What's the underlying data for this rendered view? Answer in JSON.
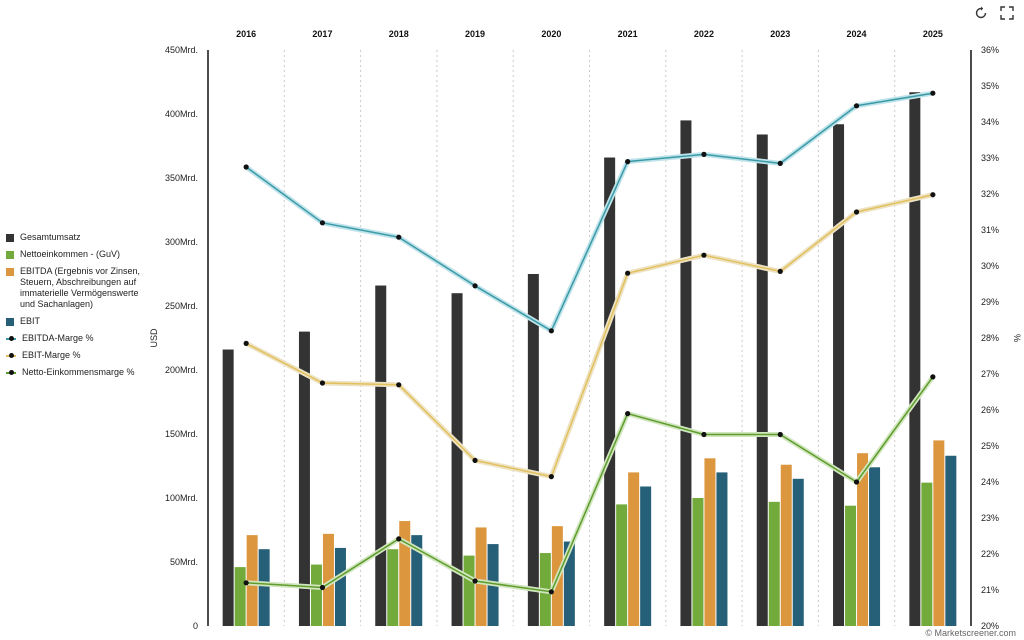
{
  "chart_data": {
    "type": "bar",
    "categories": [
      "2016",
      "2017",
      "2018",
      "2019",
      "2020",
      "2021",
      "2022",
      "2023",
      "2024",
      "2025"
    ],
    "left_axis": {
      "label": "USD",
      "ylim": [
        0,
        450
      ],
      "ticks": [
        {
          "value": 0,
          "label": "0"
        },
        {
          "value": 50,
          "label": "50Mrd."
        },
        {
          "value": 100,
          "label": "100Mrd."
        },
        {
          "value": 150,
          "label": "150Mrd."
        },
        {
          "value": 200,
          "label": "200Mrd."
        },
        {
          "value": 250,
          "label": "250Mrd."
        },
        {
          "value": 300,
          "label": "300Mrd."
        },
        {
          "value": 350,
          "label": "350Mrd."
        },
        {
          "value": 400,
          "label": "400Mrd."
        },
        {
          "value": 450,
          "label": "450Mrd."
        }
      ]
    },
    "right_axis": {
      "label": "%",
      "ylim": [
        20,
        36
      ],
      "ticks": [
        {
          "value": 20,
          "label": "20%"
        },
        {
          "value": 21,
          "label": "21%"
        },
        {
          "value": 22,
          "label": "22%"
        },
        {
          "value": 23,
          "label": "23%"
        },
        {
          "value": 24,
          "label": "24%"
        },
        {
          "value": 25,
          "label": "25%"
        },
        {
          "value": 26,
          "label": "26%"
        },
        {
          "value": 27,
          "label": "27%"
        },
        {
          "value": 28,
          "label": "28%"
        },
        {
          "value": 29,
          "label": "29%"
        },
        {
          "value": 30,
          "label": "30%"
        },
        {
          "value": 31,
          "label": "31%"
        },
        {
          "value": 32,
          "label": "32%"
        },
        {
          "value": 33,
          "label": "33%"
        },
        {
          "value": 34,
          "label": "34%"
        },
        {
          "value": 35,
          "label": "35%"
        },
        {
          "value": 36,
          "label": "36%"
        }
      ]
    },
    "bar_series": [
      {
        "name": "Gesamtumsatz",
        "color": "#333333",
        "values": [
          216,
          230,
          266,
          260,
          275,
          366,
          395,
          384,
          392,
          417
        ]
      },
      {
        "name": "Nettoeinkommen - (GuV)",
        "color": "#72aa3c",
        "values": [
          46,
          48,
          60,
          55,
          57,
          95,
          100,
          97,
          94,
          112
        ]
      },
      {
        "name": "EBITDA (Ergebnis vor Zinsen, Steuern, Abschreibungen auf immaterielle Vermögenswerte und Sachanlagen)",
        "color": "#dc963e",
        "values": [
          71,
          72,
          82,
          77,
          78,
          120,
          131,
          126,
          135,
          145
        ]
      },
      {
        "name": "EBIT",
        "color": "#265f78",
        "values": [
          60,
          61,
          71,
          64,
          66,
          109,
          120,
          115,
          124,
          133
        ]
      }
    ],
    "line_series": [
      {
        "name": "EBITDA-Marge %",
        "color": "#3a9aa6",
        "glow": "#bfe3ea",
        "values": [
          32.75,
          31.2,
          30.8,
          29.45,
          28.2,
          32.9,
          33.1,
          32.85,
          34.45,
          34.8
        ]
      },
      {
        "name": "EBIT-Marge %",
        "color": "#e2c05c",
        "glow": "#ede3c4",
        "values": [
          27.85,
          26.75,
          26.7,
          24.6,
          24.15,
          29.8,
          30.3,
          29.85,
          31.5,
          31.98
        ]
      },
      {
        "name": "Netto-Einkommensmarge %",
        "color": "#5e9c2c",
        "glow": "#d1e6bf",
        "values": [
          21.2,
          21.07,
          22.42,
          21.25,
          20.95,
          25.9,
          25.32,
          25.32,
          24.0,
          26.92
        ]
      }
    ],
    "grid": "vertical-dotted",
    "legend_position": "left"
  },
  "credit": "© Marketscreener.com",
  "toolbar": {
    "reset_icon": "reset-icon",
    "fullscreen_icon": "fullscreen-icon"
  }
}
